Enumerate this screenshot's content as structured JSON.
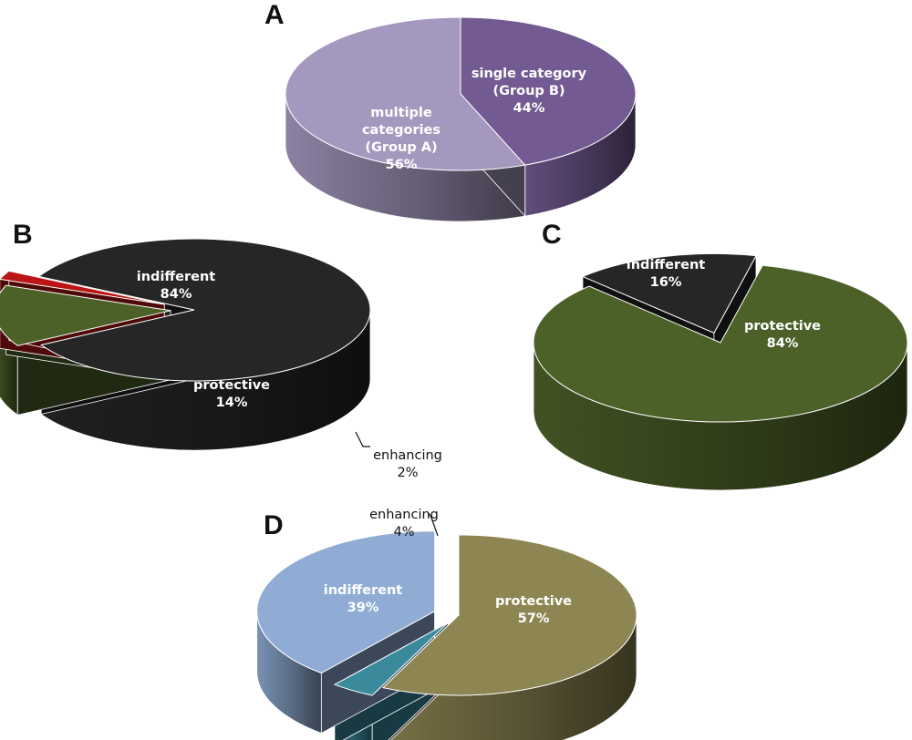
{
  "chart_data": [
    {
      "type": "pie",
      "panel": "A",
      "slices": [
        {
          "key": "single",
          "label_lines": [
            "single category",
            "(Group B)",
            "44%"
          ],
          "value": 44,
          "color": "#735a92"
        },
        {
          "key": "multiple",
          "label_lines": [
            "multiple",
            "categories",
            "(Group A)",
            "56%"
          ],
          "value": 56,
          "color": "#a598be"
        }
      ]
    },
    {
      "type": "pie",
      "panel": "B",
      "slices": [
        {
          "key": "indifferent",
          "label_lines": [
            "indifferent",
            "84%"
          ],
          "value": 84,
          "color": "#262626"
        },
        {
          "key": "protective",
          "label_lines": [
            "protective",
            "14%"
          ],
          "value": 14,
          "color": "#4c6128"
        },
        {
          "key": "enhancing",
          "label_lines": [
            "enhancing",
            "2%"
          ],
          "value": 2,
          "color": "#bb1515"
        }
      ]
    },
    {
      "type": "pie",
      "panel": "C",
      "slices": [
        {
          "key": "protective",
          "label_lines": [
            "protective",
            "84%"
          ],
          "value": 84,
          "color": "#4c6128"
        },
        {
          "key": "indifferent",
          "label_lines": [
            "indifferent",
            "16%"
          ],
          "value": 16,
          "color": "#262626"
        }
      ]
    },
    {
      "type": "pie",
      "panel": "D",
      "slices": [
        {
          "key": "protective",
          "label_lines": [
            "protective",
            "57%"
          ],
          "value": 57,
          "color": "#8d8552"
        },
        {
          "key": "enhancing",
          "label_lines": [
            "enhancing",
            "4%"
          ],
          "value": 4,
          "color": "#3a8a9c"
        },
        {
          "key": "indifferent",
          "label_lines": [
            "indifferent",
            "39%"
          ],
          "value": 39,
          "color": "#90acd4"
        }
      ]
    }
  ]
}
